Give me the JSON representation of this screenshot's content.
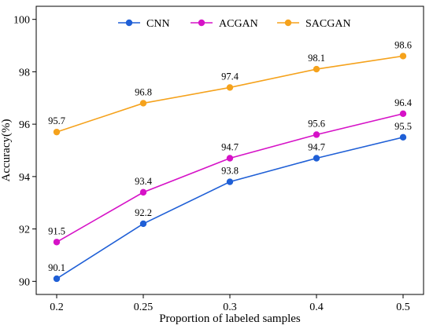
{
  "chart_data": {
    "type": "line",
    "xlabel": "Proportion of labeled samples",
    "ylabel": "Accuracy(%)",
    "categories": [
      "0.2",
      "0.25",
      "0.3",
      "0.4",
      "0.5"
    ],
    "ylim": [
      89.5,
      100.5
    ],
    "yticks": [
      90,
      92,
      94,
      96,
      98,
      100
    ],
    "grid": false,
    "legend": "top-center",
    "series": [
      {
        "name": "CNN",
        "color": "#1f5fd6",
        "values": [
          90.1,
          92.2,
          93.8,
          94.7,
          95.5
        ]
      },
      {
        "name": "ACGAN",
        "color": "#d612c7",
        "values": [
          91.5,
          93.4,
          94.7,
          95.6,
          96.4
        ]
      },
      {
        "name": "SACGAN",
        "color": "#f5a21c",
        "values": [
          95.7,
          96.8,
          97.4,
          98.1,
          98.6
        ]
      }
    ]
  }
}
